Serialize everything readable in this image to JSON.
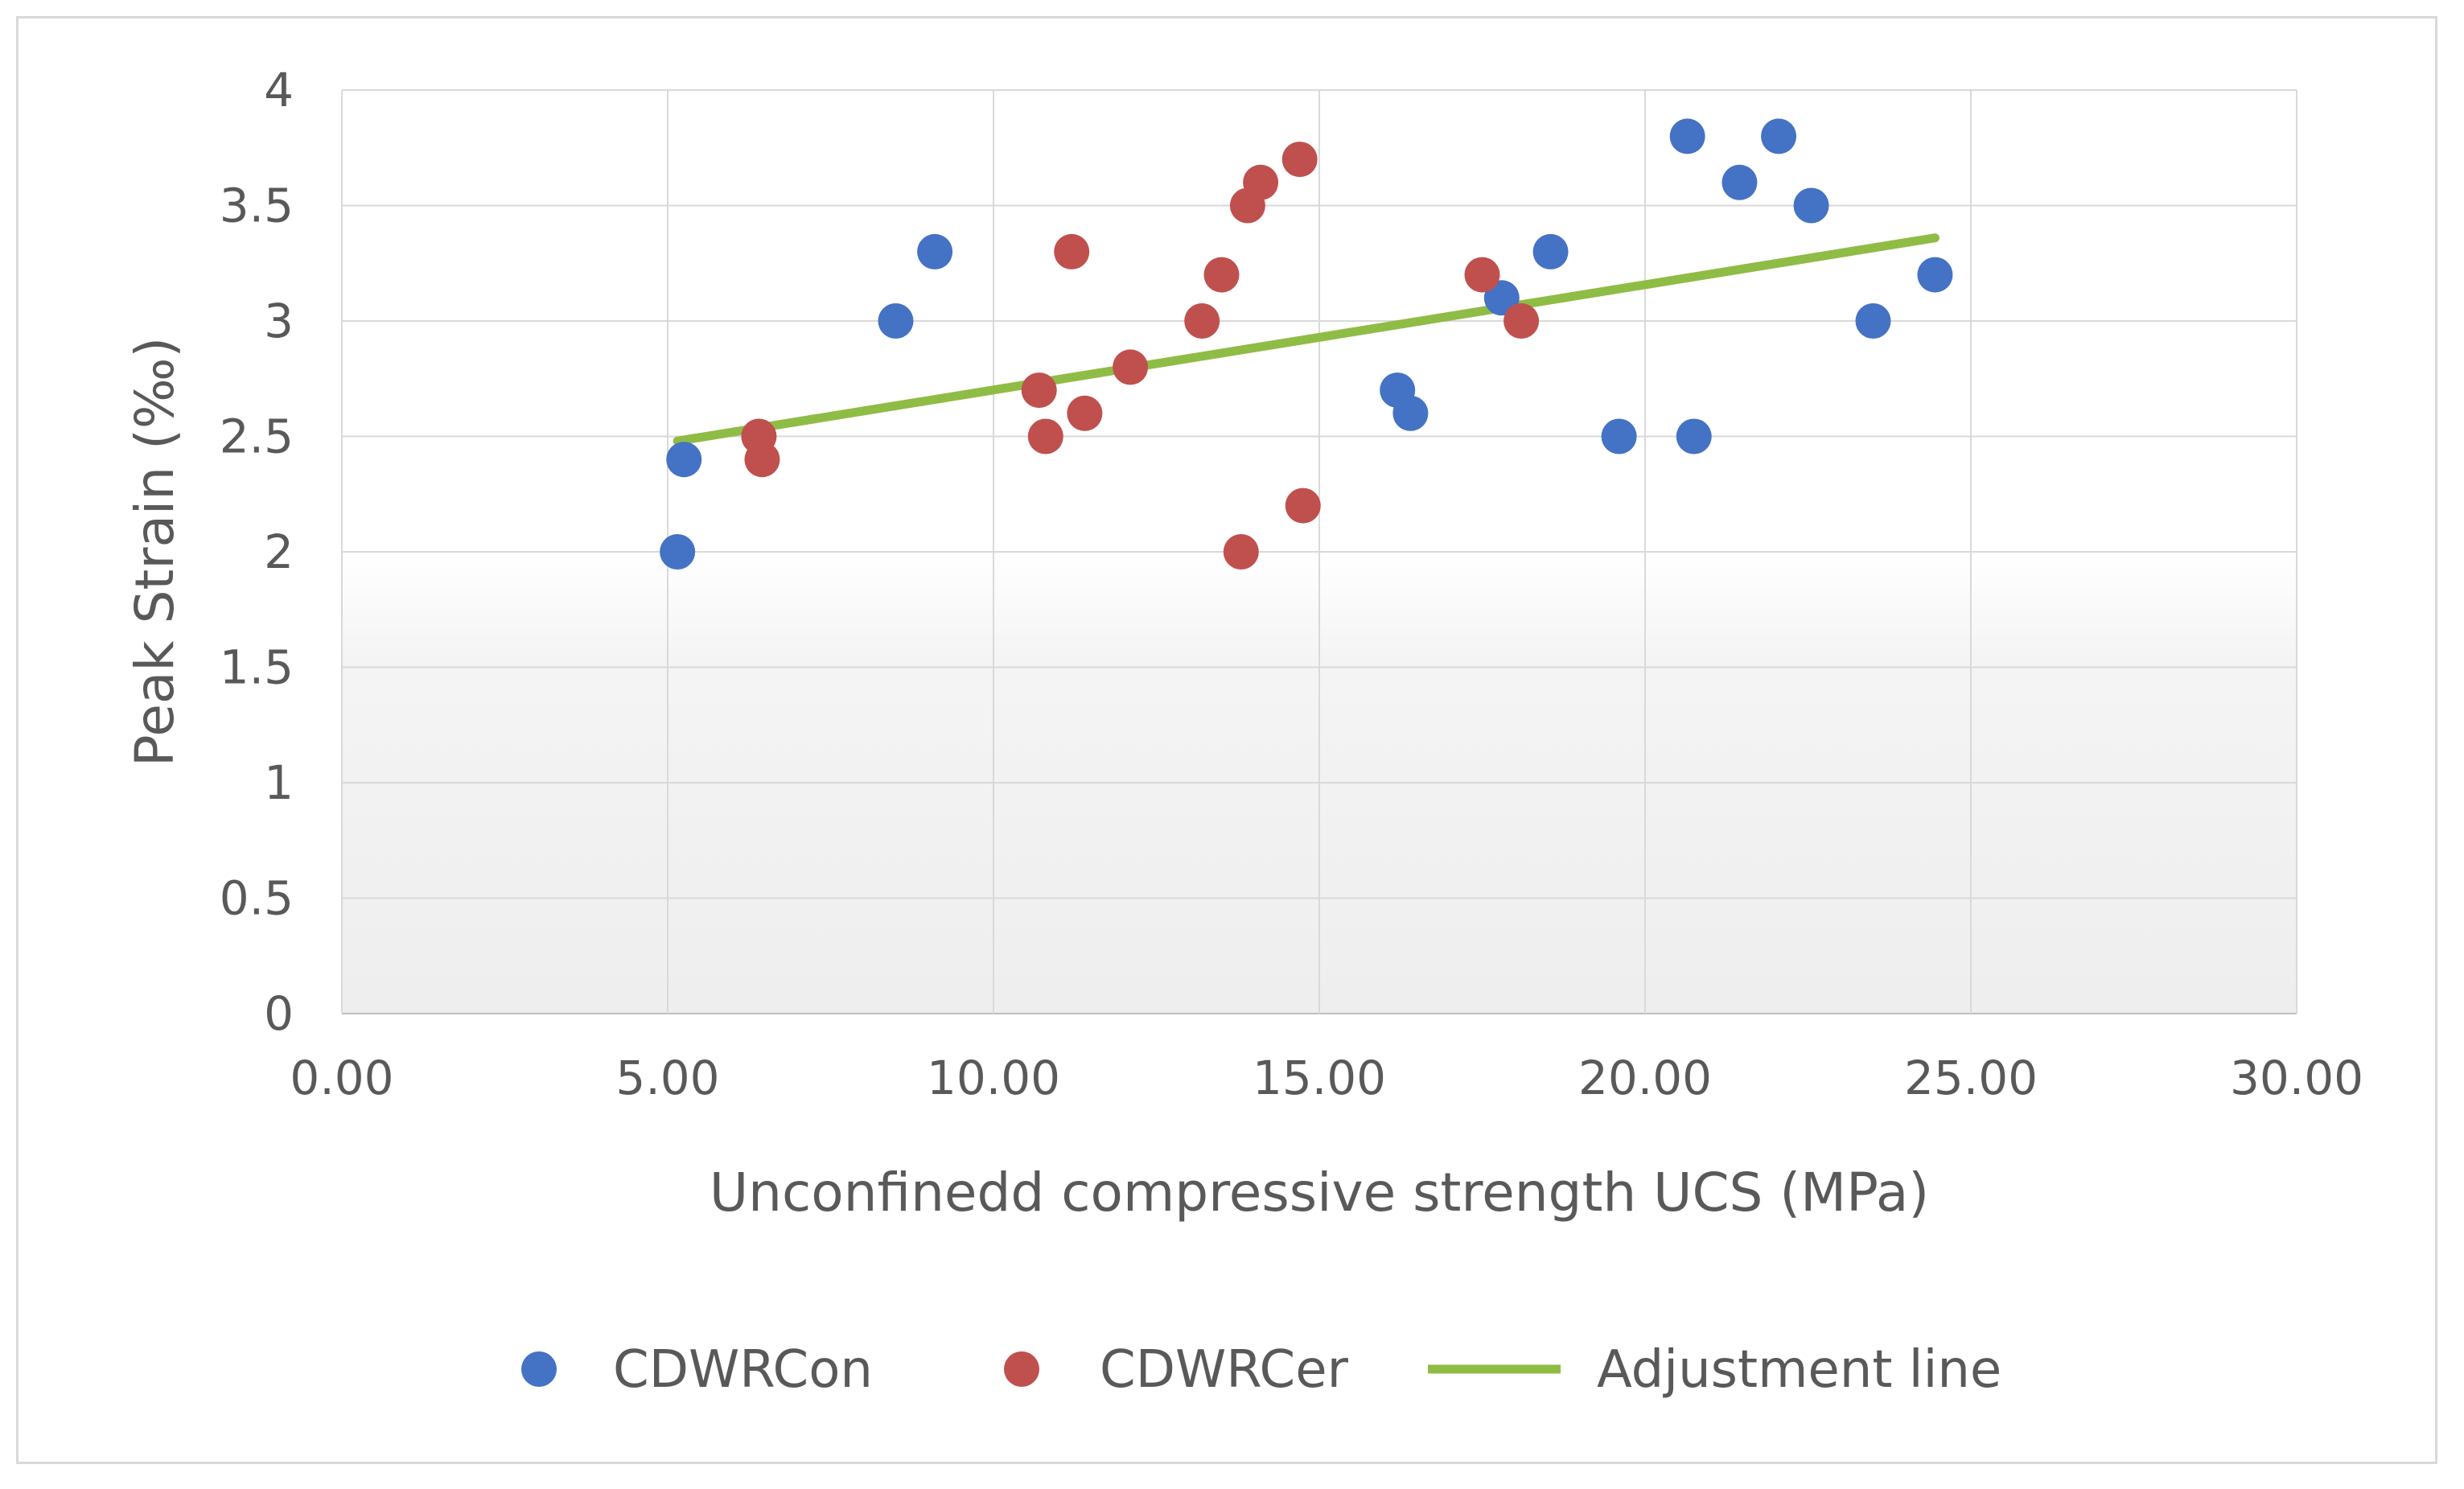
{
  "chart_data": {
    "type": "scatter",
    "title": "",
    "xlabel": "Unconfinedd compressive strength UCS (MPa)",
    "ylabel": "Peak Strain (‰)",
    "xlim": [
      0,
      30
    ],
    "ylim": [
      0,
      4
    ],
    "x_ticks": [
      0,
      5,
      10,
      15,
      20,
      25,
      30
    ],
    "x_tick_labels": [
      "0.00",
      "5.00",
      "10.00",
      "15.00",
      "20.00",
      "25.00",
      "30.00"
    ],
    "y_ticks": [
      0,
      0.5,
      1,
      1.5,
      2,
      2.5,
      3,
      3.5,
      4
    ],
    "y_tick_labels": [
      "0",
      "0.5",
      "1",
      "1.5",
      "2",
      "2.5",
      "3",
      "3.5",
      "4"
    ],
    "grid": true,
    "legend_position": "bottom",
    "series": [
      {
        "name": "CDWRCon",
        "color": "#4472c4",
        "marker": "circle",
        "points": [
          [
            5.15,
            2.0
          ],
          [
            5.25,
            2.4
          ],
          [
            8.5,
            3.0
          ],
          [
            9.1,
            3.3
          ],
          [
            16.2,
            2.7
          ],
          [
            16.4,
            2.6
          ],
          [
            17.8,
            3.1
          ],
          [
            18.55,
            3.3
          ],
          [
            19.6,
            2.5
          ],
          [
            20.65,
            3.8
          ],
          [
            20.75,
            2.5
          ],
          [
            21.45,
            3.6
          ],
          [
            22.05,
            3.8
          ],
          [
            22.55,
            3.5
          ],
          [
            23.5,
            3.0
          ],
          [
            24.45,
            3.2
          ]
        ]
      },
      {
        "name": "CDWRCer",
        "color": "#c0504d",
        "marker": "circle",
        "points": [
          [
            6.4,
            2.5
          ],
          [
            6.45,
            2.4
          ],
          [
            10.7,
            2.7
          ],
          [
            10.8,
            2.5
          ],
          [
            11.2,
            3.3
          ],
          [
            11.4,
            2.6
          ],
          [
            12.1,
            2.8
          ],
          [
            13.2,
            3.0
          ],
          [
            13.5,
            3.2
          ],
          [
            13.8,
            2.0
          ],
          [
            13.9,
            3.5
          ],
          [
            14.1,
            3.6
          ],
          [
            14.7,
            3.7
          ],
          [
            14.75,
            2.2
          ],
          [
            17.5,
            3.2
          ],
          [
            18.1,
            3.0
          ]
        ]
      },
      {
        "name": "Adjustment line",
        "color": "#8fbc45",
        "marker": "line",
        "points": [
          [
            5.15,
            2.48
          ],
          [
            24.45,
            3.36
          ]
        ]
      }
    ]
  }
}
